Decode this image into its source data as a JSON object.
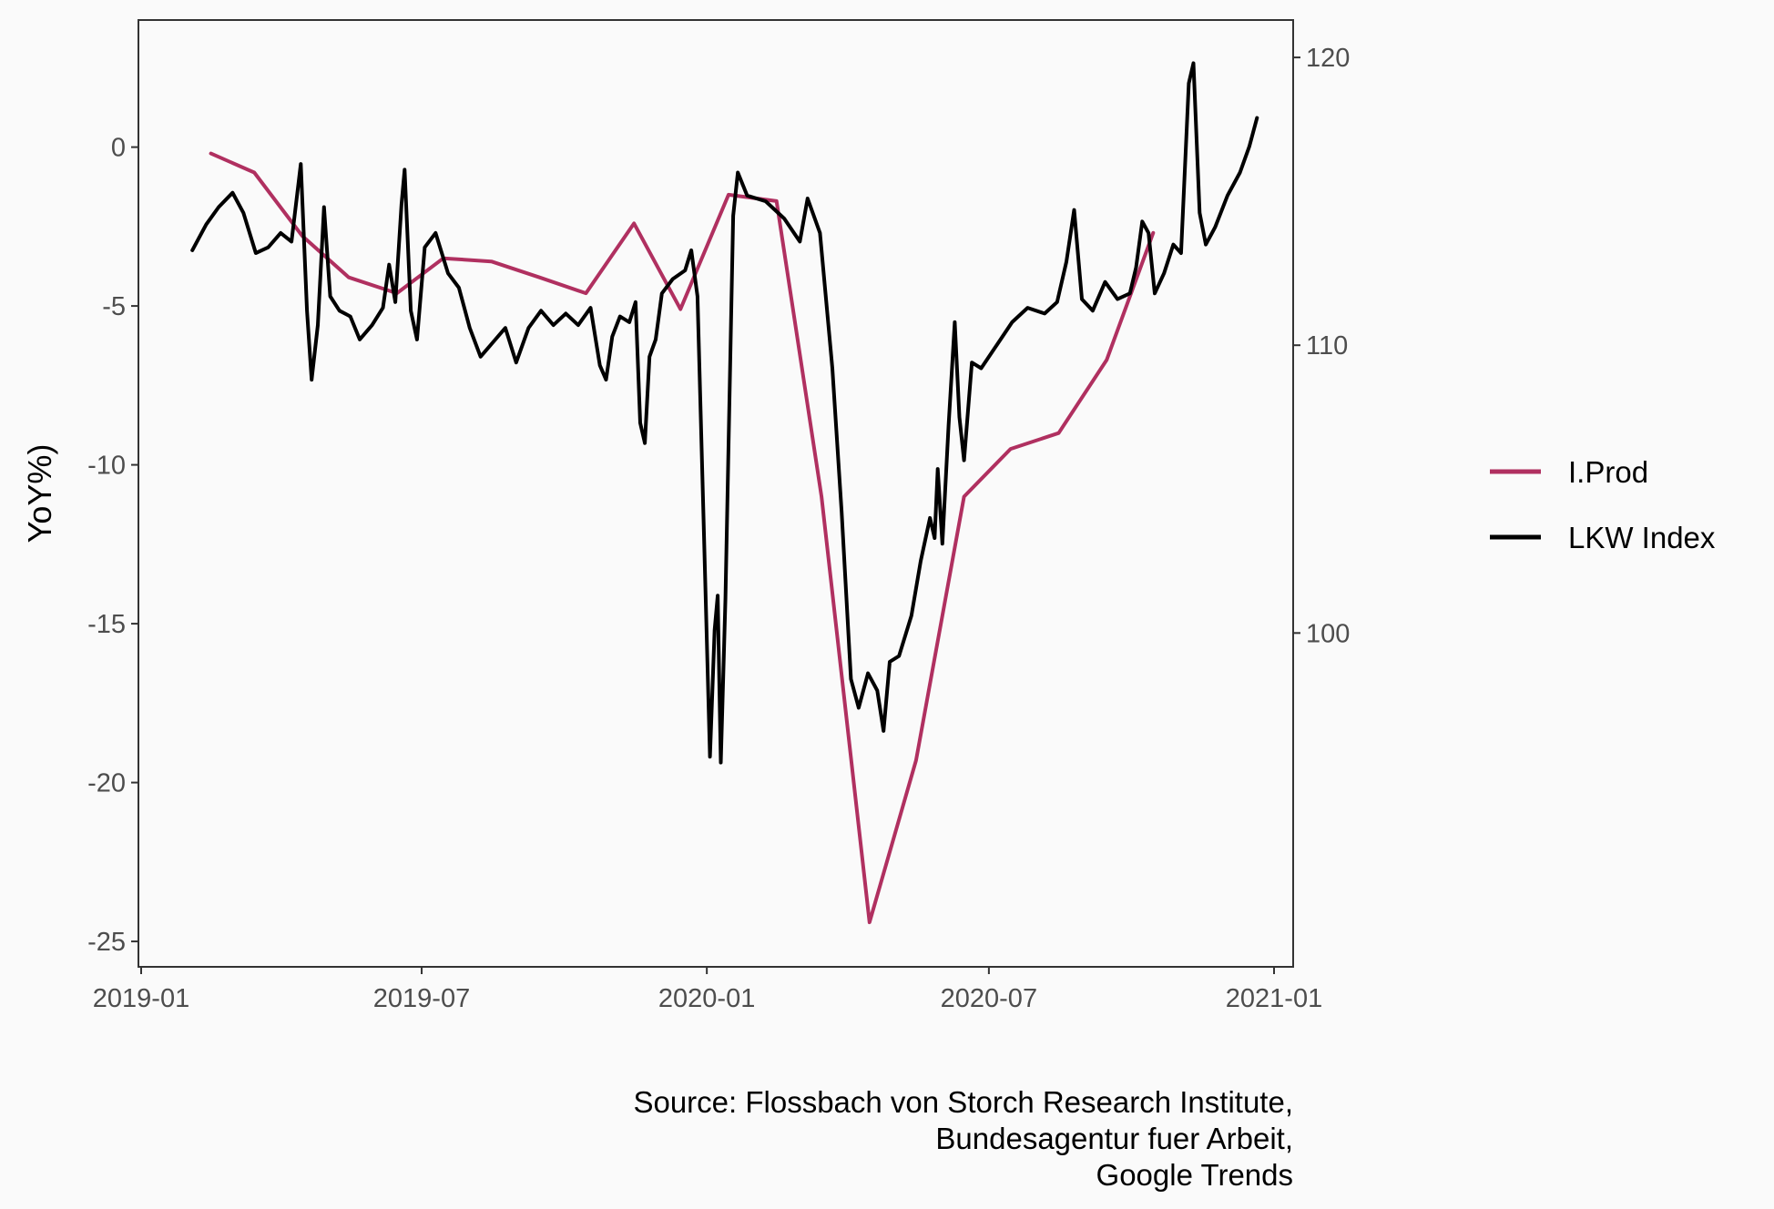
{
  "chart_data": {
    "type": "line",
    "title": "",
    "xlabel": "",
    "ylabel": "YoY%)",
    "y2label": "",
    "x_ticks": [
      "2019-01",
      "2019-07",
      "2020-01",
      "2020-07",
      "2021-01"
    ],
    "xlim": [
      "2019-01-01",
      "2021-01-01"
    ],
    "ylim": [
      -25.8,
      4
    ],
    "yticks": [
      0,
      -5,
      -10,
      -15,
      -20,
      -25
    ],
    "y2lim": [
      88.4,
      121.3
    ],
    "y2ticks": [
      120,
      110,
      100
    ],
    "grid": false,
    "legend": {
      "position": "right"
    },
    "colors": {
      "iprod": "#b03060",
      "lkw": "#000000",
      "background": "#fafafa",
      "axis": "#333333"
    },
    "caption": [
      "Source: Flossbach von Storch Research Institute,",
      "Bundesagentur fuer Arbeit,",
      "Google Trends"
    ],
    "series": [
      {
        "name": "I.Prod",
        "axis": "left",
        "color": "#b03060",
        "points": [
          [
            "2019-02-15",
            -0.2
          ],
          [
            "2019-03-15",
            -0.8
          ],
          [
            "2019-04-15",
            -2.8
          ],
          [
            "2019-05-15",
            -4.1
          ],
          [
            "2019-06-15",
            -4.6
          ],
          [
            "2019-07-15",
            -3.5
          ],
          [
            "2019-08-15",
            -3.6
          ],
          [
            "2019-09-15",
            -4.1
          ],
          [
            "2019-10-15",
            -4.6
          ],
          [
            "2019-11-15",
            -2.4
          ],
          [
            "2019-12-15",
            -5.1
          ],
          [
            "2020-01-15",
            -1.5
          ],
          [
            "2020-02-15",
            -1.7
          ],
          [
            "2020-03-15",
            -11.0
          ],
          [
            "2020-04-15",
            -24.4
          ],
          [
            "2020-05-15",
            -19.3
          ],
          [
            "2020-06-15",
            -11.0
          ],
          [
            "2020-07-15",
            -9.5
          ],
          [
            "2020-08-15",
            -9.0
          ],
          [
            "2020-09-15",
            -6.7
          ],
          [
            "2020-10-15",
            -2.7
          ]
        ]
      },
      {
        "name": "LKW Index",
        "axis": "right",
        "color": "#000000",
        "points": [
          [
            "2019-02-03",
            113.3
          ],
          [
            "2019-02-12",
            114.2
          ],
          [
            "2019-02-20",
            114.8
          ],
          [
            "2019-03-01",
            115.3
          ],
          [
            "2019-03-08",
            114.6
          ],
          [
            "2019-03-16",
            113.2
          ],
          [
            "2019-03-24",
            113.4
          ],
          [
            "2019-04-01",
            113.9
          ],
          [
            "2019-04-08",
            113.6
          ],
          [
            "2019-04-14",
            116.3
          ],
          [
            "2019-04-18",
            111.2
          ],
          [
            "2019-04-21",
            108.8
          ],
          [
            "2019-04-25",
            110.7
          ],
          [
            "2019-04-29",
            114.8
          ],
          [
            "2019-05-03",
            111.7
          ],
          [
            "2019-05-09",
            111.2
          ],
          [
            "2019-05-16",
            111.0
          ],
          [
            "2019-05-22",
            110.2
          ],
          [
            "2019-05-30",
            110.7
          ],
          [
            "2019-06-06",
            111.3
          ],
          [
            "2019-06-10",
            112.8
          ],
          [
            "2019-06-14",
            111.5
          ],
          [
            "2019-06-18",
            114.9
          ],
          [
            "2019-06-20",
            116.1
          ],
          [
            "2019-06-24",
            111.2
          ],
          [
            "2019-06-28",
            110.2
          ],
          [
            "2019-07-03",
            113.4
          ],
          [
            "2019-07-10",
            113.9
          ],
          [
            "2019-07-18",
            112.5
          ],
          [
            "2019-07-25",
            112.0
          ],
          [
            "2019-08-01",
            110.6
          ],
          [
            "2019-08-08",
            109.6
          ],
          [
            "2019-08-16",
            110.1
          ],
          [
            "2019-08-24",
            110.6
          ],
          [
            "2019-08-31",
            109.4
          ],
          [
            "2019-09-08",
            110.6
          ],
          [
            "2019-09-16",
            111.2
          ],
          [
            "2019-09-24",
            110.7
          ],
          [
            "2019-10-02",
            111.1
          ],
          [
            "2019-10-10",
            110.7
          ],
          [
            "2019-10-18",
            111.3
          ],
          [
            "2019-10-24",
            109.3
          ],
          [
            "2019-10-28",
            108.8
          ],
          [
            "2019-11-01",
            110.3
          ],
          [
            "2019-11-06",
            111.0
          ],
          [
            "2019-11-12",
            110.8
          ],
          [
            "2019-11-16",
            111.5
          ],
          [
            "2019-11-19",
            107.3
          ],
          [
            "2019-11-22",
            106.6
          ],
          [
            "2019-11-25",
            109.6
          ],
          [
            "2019-11-29",
            110.2
          ],
          [
            "2019-12-03",
            111.8
          ],
          [
            "2019-12-10",
            112.3
          ],
          [
            "2019-12-18",
            112.6
          ],
          [
            "2019-12-22",
            113.3
          ],
          [
            "2019-12-26",
            111.7
          ],
          [
            "2019-12-30",
            103.8
          ],
          [
            "2020-01-03",
            95.7
          ],
          [
            "2020-01-06",
            100.1
          ],
          [
            "2020-01-08",
            101.3
          ],
          [
            "2020-01-10",
            95.5
          ],
          [
            "2020-01-13",
            101.2
          ],
          [
            "2020-01-18",
            114.5
          ],
          [
            "2020-01-21",
            116.0
          ],
          [
            "2020-01-27",
            115.2
          ],
          [
            "2020-02-08",
            115.0
          ],
          [
            "2020-02-20",
            114.4
          ],
          [
            "2020-03-01",
            113.6
          ],
          [
            "2020-03-06",
            115.1
          ],
          [
            "2020-03-14",
            113.9
          ],
          [
            "2020-03-22",
            109.2
          ],
          [
            "2020-03-28",
            104.2
          ],
          [
            "2020-04-03",
            98.4
          ],
          [
            "2020-04-08",
            97.4
          ],
          [
            "2020-04-14",
            98.6
          ],
          [
            "2020-04-20",
            98.0
          ],
          [
            "2020-04-24",
            96.6
          ],
          [
            "2020-04-28",
            99.0
          ],
          [
            "2020-05-04",
            99.2
          ],
          [
            "2020-05-12",
            100.6
          ],
          [
            "2020-05-18",
            102.5
          ],
          [
            "2020-05-24",
            104.0
          ],
          [
            "2020-05-27",
            103.3
          ],
          [
            "2020-05-29",
            105.7
          ],
          [
            "2020-06-01",
            103.1
          ],
          [
            "2020-06-05",
            107.2
          ],
          [
            "2020-06-09",
            110.8
          ],
          [
            "2020-06-12",
            107.5
          ],
          [
            "2020-06-15",
            106.0
          ],
          [
            "2020-06-20",
            109.4
          ],
          [
            "2020-06-26",
            109.2
          ],
          [
            "2020-07-06",
            110.0
          ],
          [
            "2020-07-16",
            110.8
          ],
          [
            "2020-07-26",
            111.3
          ],
          [
            "2020-08-06",
            111.1
          ],
          [
            "2020-08-14",
            111.5
          ],
          [
            "2020-08-20",
            112.9
          ],
          [
            "2020-08-25",
            114.7
          ],
          [
            "2020-08-30",
            111.6
          ],
          [
            "2020-09-06",
            111.2
          ],
          [
            "2020-09-14",
            112.2
          ],
          [
            "2020-09-22",
            111.6
          ],
          [
            "2020-09-30",
            111.8
          ],
          [
            "2020-10-04",
            112.7
          ],
          [
            "2020-10-08",
            114.3
          ],
          [
            "2020-10-12",
            113.9
          ],
          [
            "2020-10-16",
            111.8
          ],
          [
            "2020-10-22",
            112.5
          ],
          [
            "2020-10-28",
            113.5
          ],
          [
            "2020-11-02",
            113.2
          ],
          [
            "2020-11-07",
            119.1
          ],
          [
            "2020-11-10",
            119.8
          ],
          [
            "2020-11-14",
            114.6
          ],
          [
            "2020-11-18",
            113.5
          ],
          [
            "2020-11-24",
            114.1
          ],
          [
            "2020-12-02",
            115.2
          ],
          [
            "2020-12-10",
            116.0
          ],
          [
            "2020-12-16",
            116.9
          ],
          [
            "2020-12-21",
            117.9
          ]
        ]
      }
    ]
  }
}
